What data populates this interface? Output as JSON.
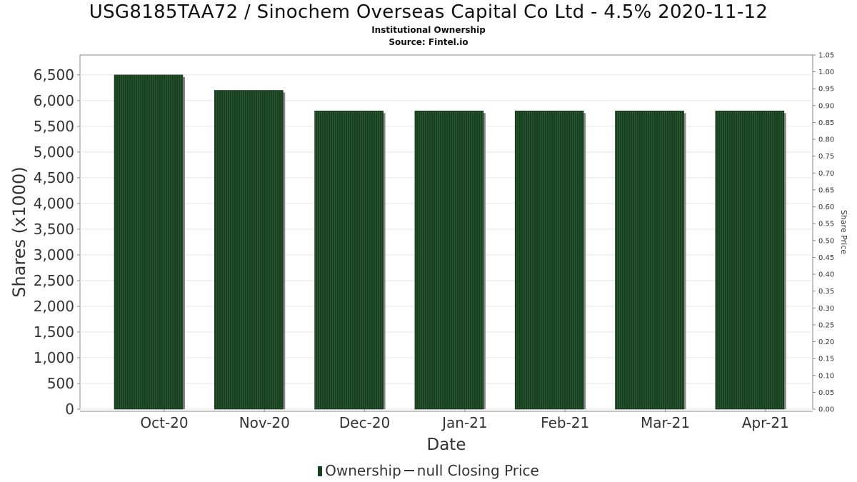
{
  "chart_data": {
    "type": "bar",
    "title": "USG8185TAA72 / Sinochem Overseas Capital Co Ltd - 4.5% 2020-11-12",
    "subtitle_1": "Institutional Ownership",
    "subtitle_2": "Source: Fintel.io",
    "xlabel": "Date",
    "ylabel": "Shares (x1000)",
    "y2label": "Share Price",
    "categories": [
      "Oct-20",
      "Nov-20",
      "Dec-20",
      "Jan-21",
      "Feb-21",
      "Mar-21",
      "Apr-21"
    ],
    "series": [
      {
        "name": "Ownership",
        "values": [
          6500,
          6200,
          5800,
          5800,
          5800,
          5800,
          5800
        ]
      }
    ],
    "ylim": [
      0,
      6500
    ],
    "yticks": [
      "0",
      "500",
      "1,000",
      "1,500",
      "2,000",
      "2,500",
      "3,000",
      "3,500",
      "4,000",
      "4,500",
      "5,000",
      "5,500",
      "6,000",
      "6,500"
    ],
    "y2lim": [
      0,
      1.05
    ],
    "y2ticks": [
      "0.00",
      "0.05",
      "0.10",
      "0.15",
      "0.20",
      "0.25",
      "0.30",
      "0.35",
      "0.40",
      "0.45",
      "0.50",
      "0.55",
      "0.60",
      "0.65",
      "0.70",
      "0.75",
      "0.80",
      "0.85",
      "0.90",
      "0.95",
      "1.00",
      "1.05"
    ],
    "grid": true,
    "legend_position": "bottom",
    "legend": {
      "ownership_label": "Ownership",
      "price_label": "null Closing Price"
    },
    "colors": {
      "bar": "#1a3f20",
      "bar_stripe": "#2a5a30",
      "bar_shadow": "#8a8a8a",
      "grid": "#e3e3e3",
      "axis": "#888888"
    }
  }
}
